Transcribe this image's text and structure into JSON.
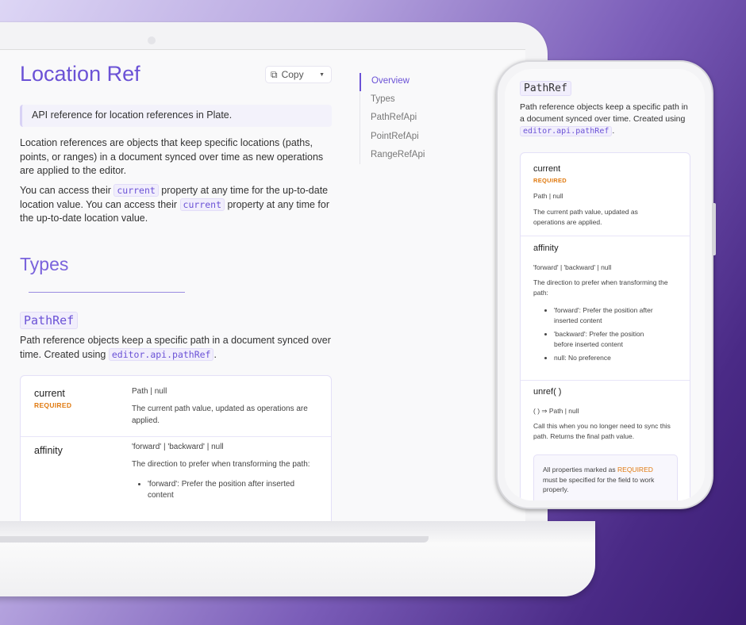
{
  "page": {
    "title": "Location Ref",
    "copy_label": "Copy",
    "description": "API reference for location references in Plate.",
    "intro": "Location references are objects that keep specific locations (paths, points, or ranges) in a document synced over time as new operations are applied to the editor.",
    "access_1": "You can access their ",
    "code_current": "current",
    "access_2": " property at any time for the up-to-date location value. You can access their ",
    "access_3": " property at any time for the up-to-date location value.",
    "types_heading": "Types",
    "pathref_heading": "PathRef",
    "pathref_desc_1": "Path reference objects keep a specific path in a document synced over time. Created using ",
    "pathref_code": "editor.api.pathRef",
    "period": "."
  },
  "toc": [
    "Overview",
    "Types",
    "PathRefApi",
    "PointRefApi",
    "RangeRefApi"
  ],
  "props": {
    "current": {
      "name": "current",
      "required": "REQUIRED",
      "type": "Path | null",
      "desc": "The current path value, updated as operations are applied."
    },
    "affinity": {
      "name": "affinity",
      "type": "'forward' | 'backward' | null",
      "desc": "The direction to prefer when transforming the path:",
      "options": [
        "'forward': Prefer the position after inserted content",
        "'backward': Prefer the position before inserted content",
        "null: No preference"
      ]
    },
    "unref": {
      "name": "unref( )",
      "type": "( ) ⇒ Path | null",
      "desc": "Call this when you no longer need to sync this path. Returns the final path value."
    }
  },
  "note": {
    "text_1": "All properties marked as ",
    "required": "REQUIRED",
    "text_2": " must be specified for the field to work properly."
  },
  "colors": {
    "accent": "#6b52d6",
    "required": "#e07a10"
  }
}
